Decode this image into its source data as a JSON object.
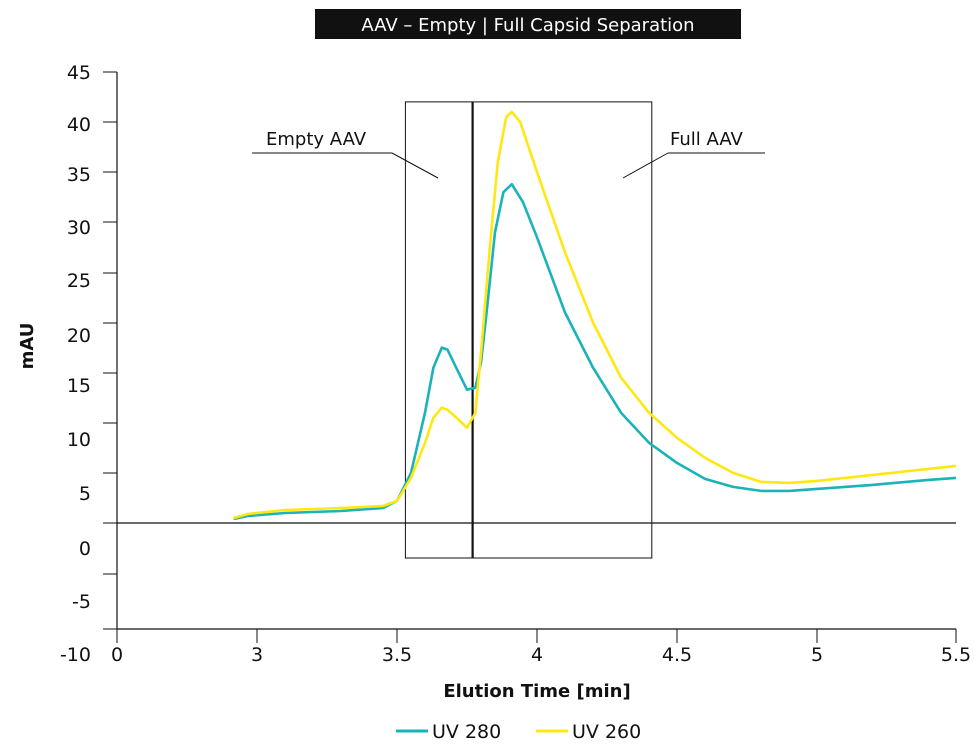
{
  "chart_data": {
    "type": "line",
    "title": "AAV – Empty | Full Capsid Separation",
    "xlabel": "Elution Time [min]",
    "ylabel": "mAU",
    "x_ticks": [
      "0",
      "3",
      "3.5",
      "4",
      "4.5",
      "5",
      "5.5"
    ],
    "y_ticks": [
      "45",
      "40",
      "35",
      "30",
      "25",
      "20",
      "15",
      "10",
      "5",
      "0",
      "-5",
      "-10"
    ],
    "ylim": [
      -10,
      45
    ],
    "grid": false,
    "legend_position": "bottom-center",
    "series": [
      {
        "name": "UV 280",
        "color": "#1ab3ba",
        "points": [
          [
            2.5,
            0.4
          ],
          [
            2.8,
            0.7
          ],
          [
            3.1,
            1.0
          ],
          [
            3.3,
            1.2
          ],
          [
            3.45,
            1.5
          ],
          [
            3.5,
            2.2
          ],
          [
            3.55,
            5
          ],
          [
            3.6,
            11
          ],
          [
            3.63,
            15.5
          ],
          [
            3.66,
            17.5
          ],
          [
            3.68,
            17.3
          ],
          [
            3.72,
            15
          ],
          [
            3.75,
            13.3
          ],
          [
            3.78,
            13.5
          ],
          [
            3.8,
            16
          ],
          [
            3.82,
            21
          ],
          [
            3.85,
            29
          ],
          [
            3.88,
            33
          ],
          [
            3.91,
            33.8
          ],
          [
            3.95,
            32
          ],
          [
            4.0,
            28.5
          ],
          [
            4.1,
            21
          ],
          [
            4.2,
            15.5
          ],
          [
            4.3,
            11
          ],
          [
            4.4,
            8
          ],
          [
            4.5,
            6
          ],
          [
            4.6,
            4.4
          ],
          [
            4.7,
            3.6
          ],
          [
            4.8,
            3.2
          ],
          [
            4.9,
            3.2
          ],
          [
            5.0,
            3.4
          ],
          [
            5.2,
            3.8
          ],
          [
            5.4,
            4.3
          ],
          [
            5.5,
            4.5
          ]
        ]
      },
      {
        "name": "UV 260",
        "color": "#ffe812",
        "points": [
          [
            2.5,
            0.5
          ],
          [
            2.8,
            0.9
          ],
          [
            3.1,
            1.3
          ],
          [
            3.3,
            1.5
          ],
          [
            3.45,
            1.7
          ],
          [
            3.5,
            2.2
          ],
          [
            3.55,
            4.5
          ],
          [
            3.6,
            8
          ],
          [
            3.63,
            10.5
          ],
          [
            3.66,
            11.5
          ],
          [
            3.68,
            11.3
          ],
          [
            3.72,
            10.3
          ],
          [
            3.75,
            9.5
          ],
          [
            3.78,
            11
          ],
          [
            3.8,
            17
          ],
          [
            3.83,
            27
          ],
          [
            3.86,
            36
          ],
          [
            3.89,
            40.5
          ],
          [
            3.91,
            41
          ],
          [
            3.94,
            40
          ],
          [
            4.0,
            35
          ],
          [
            4.1,
            27
          ],
          [
            4.2,
            20
          ],
          [
            4.3,
            14.5
          ],
          [
            4.4,
            11
          ],
          [
            4.5,
            8.5
          ],
          [
            4.6,
            6.5
          ],
          [
            4.7,
            5
          ],
          [
            4.8,
            4.1
          ],
          [
            4.9,
            4
          ],
          [
            5.0,
            4.2
          ],
          [
            5.2,
            4.8
          ],
          [
            5.4,
            5.4
          ],
          [
            5.5,
            5.7
          ]
        ]
      }
    ],
    "annotations": {
      "empty_label": "Empty AAV",
      "full_label": "Full AAV",
      "box_x_range": [
        3.53,
        4.41
      ],
      "box_y_range": [
        -3.5,
        42
      ],
      "divider_x": 3.77
    }
  }
}
